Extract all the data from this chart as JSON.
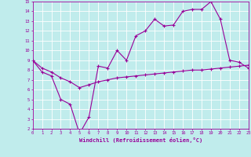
{
  "xlabel": "Windchill (Refroidissement éolien,°C)",
  "bg_color": "#c0ecec",
  "line_color": "#990099",
  "grid_color": "#ffffff",
  "x_data1": [
    0,
    1,
    2,
    3,
    4,
    5,
    6,
    7,
    8,
    9,
    10,
    11,
    12,
    13,
    14,
    15,
    16,
    17,
    18,
    19,
    20,
    21,
    22,
    23
  ],
  "y_data1": [
    9.0,
    7.8,
    7.4,
    5.0,
    4.5,
    1.5,
    3.2,
    8.4,
    8.2,
    10.0,
    9.0,
    11.5,
    12.0,
    13.2,
    12.5,
    12.6,
    14.0,
    14.2,
    14.2,
    15.0,
    13.2,
    9.0,
    8.8,
    8.2
  ],
  "x_data2": [
    0,
    1,
    2,
    3,
    4,
    5,
    6,
    7,
    8,
    9,
    10,
    11,
    12,
    13,
    14,
    15,
    16,
    17,
    18,
    19,
    20,
    21,
    22,
    23
  ],
  "y_data2": [
    9.0,
    8.2,
    7.8,
    7.2,
    6.8,
    6.2,
    6.5,
    6.8,
    7.0,
    7.2,
    7.3,
    7.4,
    7.5,
    7.6,
    7.7,
    7.8,
    7.9,
    8.0,
    8.0,
    8.1,
    8.2,
    8.3,
    8.4,
    8.5
  ],
  "xlim": [
    0,
    23
  ],
  "ylim": [
    2,
    15
  ],
  "yticks": [
    2,
    3,
    4,
    5,
    6,
    7,
    8,
    9,
    10,
    11,
    12,
    13,
    14,
    15
  ],
  "xticks": [
    0,
    1,
    2,
    3,
    4,
    5,
    6,
    7,
    8,
    9,
    10,
    11,
    12,
    13,
    14,
    15,
    16,
    17,
    18,
    19,
    20,
    21,
    22,
    23
  ],
  "marker": "+",
  "markersize": 3,
  "linewidth": 0.8,
  "tick_fontsize": 4.0,
  "xlabel_fontsize": 5.0
}
